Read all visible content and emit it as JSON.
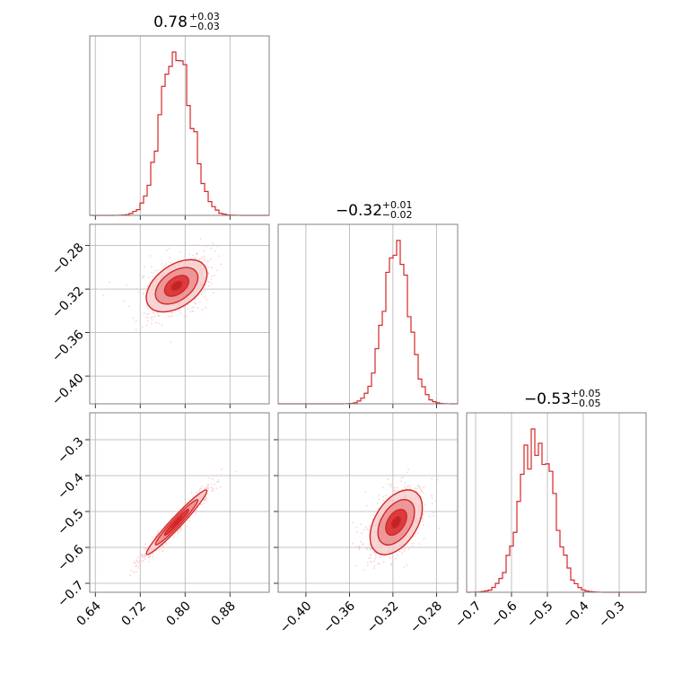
{
  "chart_data": {
    "type": "corner",
    "colors": {
      "main": "#d62728",
      "fill_light": "#f4c9ca",
      "fill_mid": "#e8888a",
      "fill_dark": "#d62728",
      "grid": "#b0b0b0",
      "frame": "#808080"
    },
    "grid": true,
    "parameters": [
      {
        "median": "0.78",
        "plus": "+0.03",
        "minus": "−0.03",
        "ticks": [
          0.64,
          0.72,
          0.8,
          0.88
        ],
        "tick_labels": [
          "0.64",
          "0.72",
          "0.80",
          "0.88"
        ],
        "range": [
          0.63,
          0.95
        ]
      },
      {
        "median": "−0.32",
        "plus": "+0.01",
        "minus": "−0.02",
        "ticks": [
          -0.4,
          -0.36,
          -0.32,
          -0.28
        ],
        "tick_labels": [
          "−0.40",
          "−0.36",
          "−0.32",
          "−0.28"
        ],
        "range": [
          -0.4255,
          -0.2605
        ]
      },
      {
        "median": "−0.53",
        "plus": "+0.05",
        "minus": "−0.05",
        "ticks": [
          -0.7,
          -0.6,
          -0.5,
          -0.4,
          -0.3
        ],
        "tick_labels": [
          "−0.7",
          "−0.6",
          "−0.5",
          "−0.4",
          "−0.3"
        ],
        "range": [
          -0.725,
          -0.225
        ]
      }
    ],
    "marginals": [
      {
        "mean": 0.785,
        "sd": 0.027,
        "peak_value": 0.8
      },
      {
        "mean": -0.317,
        "sd": 0.012,
        "peak_value": 0.8
      },
      {
        "mean": -0.53,
        "sd": 0.045,
        "peak_value": 0.8
      }
    ],
    "pairs": [
      {
        "row": 1,
        "col": 0,
        "correlation": 0.45
      },
      {
        "row": 2,
        "col": 0,
        "correlation": 0.97
      },
      {
        "row": 2,
        "col": 1,
        "correlation": 0.45
      }
    ]
  }
}
